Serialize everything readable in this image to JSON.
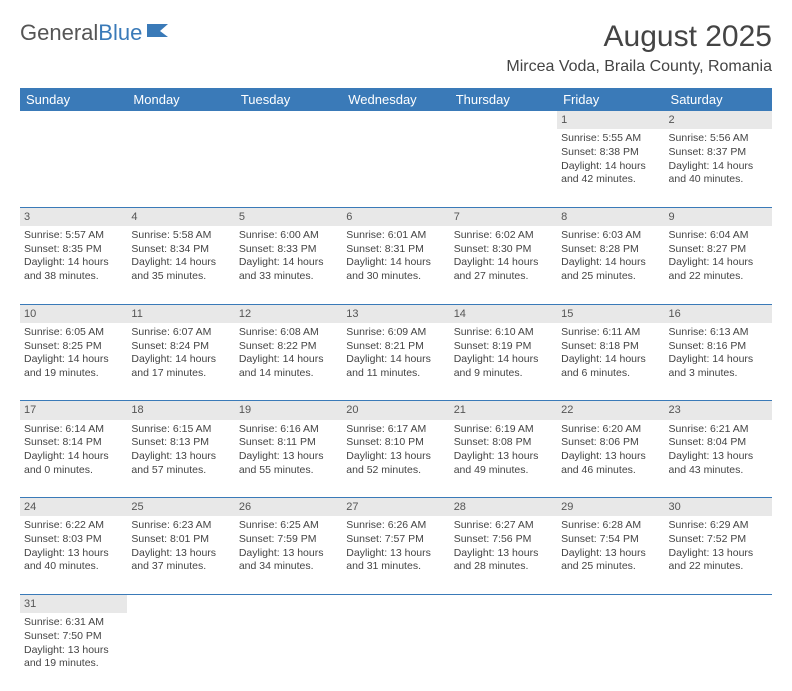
{
  "logo": {
    "text_a": "General",
    "text_b": "Blue"
  },
  "title": "August 2025",
  "location": "Mircea Voda, Braila County, Romania",
  "day_headers": [
    "Sunday",
    "Monday",
    "Tuesday",
    "Wednesday",
    "Thursday",
    "Friday",
    "Saturday"
  ],
  "colors": {
    "header_bg": "#3a7ab8",
    "daynum_bg": "#e8e8e8"
  },
  "weeks": [
    {
      "days": [
        null,
        null,
        null,
        null,
        null,
        {
          "n": "1",
          "sunrise": "Sunrise: 5:55 AM",
          "sunset": "Sunset: 8:38 PM",
          "day1": "Daylight: 14 hours",
          "day2": "and 42 minutes."
        },
        {
          "n": "2",
          "sunrise": "Sunrise: 5:56 AM",
          "sunset": "Sunset: 8:37 PM",
          "day1": "Daylight: 14 hours",
          "day2": "and 40 minutes."
        }
      ]
    },
    {
      "days": [
        {
          "n": "3",
          "sunrise": "Sunrise: 5:57 AM",
          "sunset": "Sunset: 8:35 PM",
          "day1": "Daylight: 14 hours",
          "day2": "and 38 minutes."
        },
        {
          "n": "4",
          "sunrise": "Sunrise: 5:58 AM",
          "sunset": "Sunset: 8:34 PM",
          "day1": "Daylight: 14 hours",
          "day2": "and 35 minutes."
        },
        {
          "n": "5",
          "sunrise": "Sunrise: 6:00 AM",
          "sunset": "Sunset: 8:33 PM",
          "day1": "Daylight: 14 hours",
          "day2": "and 33 minutes."
        },
        {
          "n": "6",
          "sunrise": "Sunrise: 6:01 AM",
          "sunset": "Sunset: 8:31 PM",
          "day1": "Daylight: 14 hours",
          "day2": "and 30 minutes."
        },
        {
          "n": "7",
          "sunrise": "Sunrise: 6:02 AM",
          "sunset": "Sunset: 8:30 PM",
          "day1": "Daylight: 14 hours",
          "day2": "and 27 minutes."
        },
        {
          "n": "8",
          "sunrise": "Sunrise: 6:03 AM",
          "sunset": "Sunset: 8:28 PM",
          "day1": "Daylight: 14 hours",
          "day2": "and 25 minutes."
        },
        {
          "n": "9",
          "sunrise": "Sunrise: 6:04 AM",
          "sunset": "Sunset: 8:27 PM",
          "day1": "Daylight: 14 hours",
          "day2": "and 22 minutes."
        }
      ]
    },
    {
      "days": [
        {
          "n": "10",
          "sunrise": "Sunrise: 6:05 AM",
          "sunset": "Sunset: 8:25 PM",
          "day1": "Daylight: 14 hours",
          "day2": "and 19 minutes."
        },
        {
          "n": "11",
          "sunrise": "Sunrise: 6:07 AM",
          "sunset": "Sunset: 8:24 PM",
          "day1": "Daylight: 14 hours",
          "day2": "and 17 minutes."
        },
        {
          "n": "12",
          "sunrise": "Sunrise: 6:08 AM",
          "sunset": "Sunset: 8:22 PM",
          "day1": "Daylight: 14 hours",
          "day2": "and 14 minutes."
        },
        {
          "n": "13",
          "sunrise": "Sunrise: 6:09 AM",
          "sunset": "Sunset: 8:21 PM",
          "day1": "Daylight: 14 hours",
          "day2": "and 11 minutes."
        },
        {
          "n": "14",
          "sunrise": "Sunrise: 6:10 AM",
          "sunset": "Sunset: 8:19 PM",
          "day1": "Daylight: 14 hours",
          "day2": "and 9 minutes."
        },
        {
          "n": "15",
          "sunrise": "Sunrise: 6:11 AM",
          "sunset": "Sunset: 8:18 PM",
          "day1": "Daylight: 14 hours",
          "day2": "and 6 minutes."
        },
        {
          "n": "16",
          "sunrise": "Sunrise: 6:13 AM",
          "sunset": "Sunset: 8:16 PM",
          "day1": "Daylight: 14 hours",
          "day2": "and 3 minutes."
        }
      ]
    },
    {
      "days": [
        {
          "n": "17",
          "sunrise": "Sunrise: 6:14 AM",
          "sunset": "Sunset: 8:14 PM",
          "day1": "Daylight: 14 hours",
          "day2": "and 0 minutes."
        },
        {
          "n": "18",
          "sunrise": "Sunrise: 6:15 AM",
          "sunset": "Sunset: 8:13 PM",
          "day1": "Daylight: 13 hours",
          "day2": "and 57 minutes."
        },
        {
          "n": "19",
          "sunrise": "Sunrise: 6:16 AM",
          "sunset": "Sunset: 8:11 PM",
          "day1": "Daylight: 13 hours",
          "day2": "and 55 minutes."
        },
        {
          "n": "20",
          "sunrise": "Sunrise: 6:17 AM",
          "sunset": "Sunset: 8:10 PM",
          "day1": "Daylight: 13 hours",
          "day2": "and 52 minutes."
        },
        {
          "n": "21",
          "sunrise": "Sunrise: 6:19 AM",
          "sunset": "Sunset: 8:08 PM",
          "day1": "Daylight: 13 hours",
          "day2": "and 49 minutes."
        },
        {
          "n": "22",
          "sunrise": "Sunrise: 6:20 AM",
          "sunset": "Sunset: 8:06 PM",
          "day1": "Daylight: 13 hours",
          "day2": "and 46 minutes."
        },
        {
          "n": "23",
          "sunrise": "Sunrise: 6:21 AM",
          "sunset": "Sunset: 8:04 PM",
          "day1": "Daylight: 13 hours",
          "day2": "and 43 minutes."
        }
      ]
    },
    {
      "days": [
        {
          "n": "24",
          "sunrise": "Sunrise: 6:22 AM",
          "sunset": "Sunset: 8:03 PM",
          "day1": "Daylight: 13 hours",
          "day2": "and 40 minutes."
        },
        {
          "n": "25",
          "sunrise": "Sunrise: 6:23 AM",
          "sunset": "Sunset: 8:01 PM",
          "day1": "Daylight: 13 hours",
          "day2": "and 37 minutes."
        },
        {
          "n": "26",
          "sunrise": "Sunrise: 6:25 AM",
          "sunset": "Sunset: 7:59 PM",
          "day1": "Daylight: 13 hours",
          "day2": "and 34 minutes."
        },
        {
          "n": "27",
          "sunrise": "Sunrise: 6:26 AM",
          "sunset": "Sunset: 7:57 PM",
          "day1": "Daylight: 13 hours",
          "day2": "and 31 minutes."
        },
        {
          "n": "28",
          "sunrise": "Sunrise: 6:27 AM",
          "sunset": "Sunset: 7:56 PM",
          "day1": "Daylight: 13 hours",
          "day2": "and 28 minutes."
        },
        {
          "n": "29",
          "sunrise": "Sunrise: 6:28 AM",
          "sunset": "Sunset: 7:54 PM",
          "day1": "Daylight: 13 hours",
          "day2": "and 25 minutes."
        },
        {
          "n": "30",
          "sunrise": "Sunrise: 6:29 AM",
          "sunset": "Sunset: 7:52 PM",
          "day1": "Daylight: 13 hours",
          "day2": "and 22 minutes."
        }
      ]
    },
    {
      "days": [
        {
          "n": "31",
          "sunrise": "Sunrise: 6:31 AM",
          "sunset": "Sunset: 7:50 PM",
          "day1": "Daylight: 13 hours",
          "day2": "and 19 minutes."
        },
        null,
        null,
        null,
        null,
        null,
        null
      ]
    }
  ]
}
